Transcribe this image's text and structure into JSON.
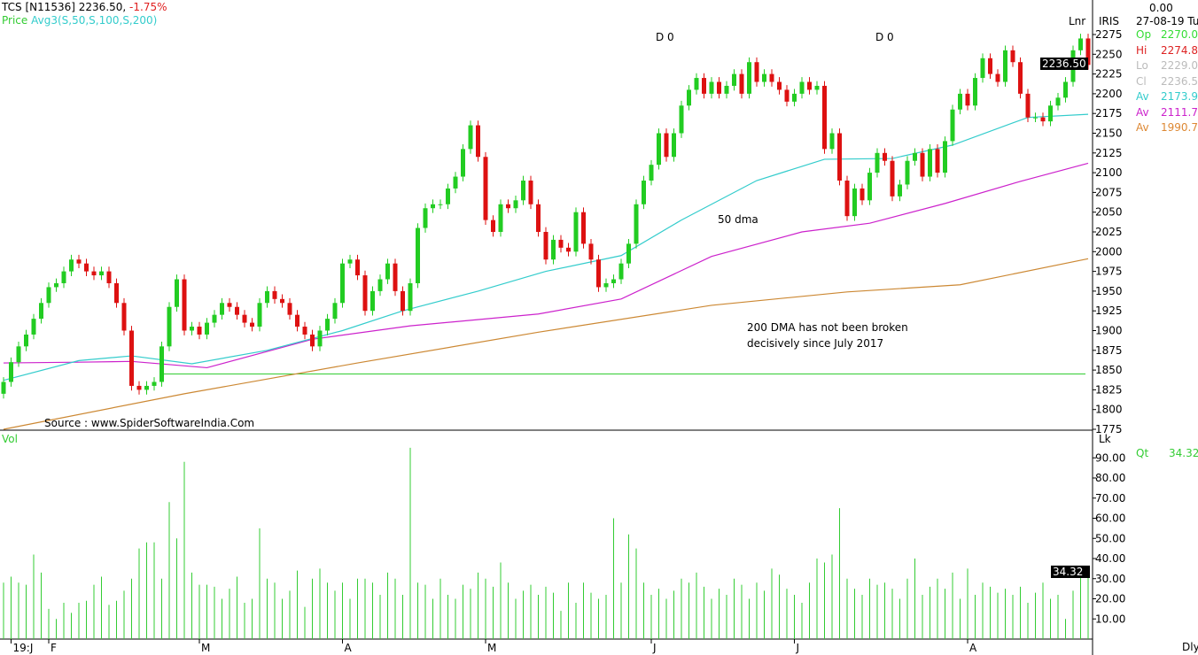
{
  "header": {
    "symbol": "TCS [N11536]",
    "price": "2236.50,",
    "change": "-1.75%",
    "price_label": "Price",
    "avg_label": "Avg3(S,50,S,100,S,200)"
  },
  "right_panel": {
    "top_value": "0.00",
    "date": "27-08-19 Tu",
    "iris": "IRIS",
    "lnr": "Lnr",
    "lk": "Lk",
    "dly": "Dly",
    "rows": [
      {
        "label": "Op",
        "value": "2270.00",
        "color": "#33dd33"
      },
      {
        "label": "Hi",
        "value": "2274.85",
        "color": "#dd2222"
      },
      {
        "label": "Lo",
        "value": "2229.00",
        "color": "#bbbbbb"
      },
      {
        "label": "Cl",
        "value": "2236.50",
        "color": "#bbbbbb"
      },
      {
        "label": "Av",
        "value": "2173.97",
        "color": "#33cccc"
      },
      {
        "label": "Av",
        "value": "2111.79",
        "color": "#cc22cc"
      },
      {
        "label": "Av",
        "value": "1990.70",
        "color": "#dd8833"
      }
    ],
    "vol_label": "Qt",
    "vol_value": "34.32",
    "last_price_tag": "2236.50",
    "last_vol_tag": "34.32"
  },
  "annotations": {
    "dma50": "50 dma",
    "dma200_line1": "200 DMA has not been broken",
    "dma200_line2": "decisively since July 2017",
    "source": "Source : www.SpiderSoftwareIndia.Com",
    "d0_a": "D 0",
    "d0_b": "D 0",
    "vol": "Vol"
  },
  "colors": {
    "up": "#22cc22",
    "down": "#dd1111",
    "ma50": "#33cccc",
    "ma100": "#cc22cc",
    "ma200": "#cc8833",
    "support": "#33cc33",
    "volume": "#33cc33"
  },
  "chart_data": {
    "type": "candlestick",
    "title": "TCS [N11536] daily",
    "ylim": [
      1775,
      2285
    ],
    "yticks": [
      1775,
      1800,
      1825,
      1850,
      1875,
      1900,
      1925,
      1950,
      1975,
      2000,
      2025,
      2050,
      2075,
      2100,
      2125,
      2150,
      2175,
      2200,
      2225,
      2250,
      2275
    ],
    "xticks": [
      {
        "i": 1,
        "label": "19:J"
      },
      {
        "i": 6,
        "label": "F"
      },
      {
        "i": 26,
        "label": "M"
      },
      {
        "i": 45,
        "label": "A"
      },
      {
        "i": 64,
        "label": "M"
      },
      {
        "i": 86,
        "label": "J"
      },
      {
        "i": 105,
        "label": "J"
      },
      {
        "i": 128,
        "label": "A"
      }
    ],
    "close": [
      1835,
      1860,
      1880,
      1895,
      1915,
      1935,
      1955,
      1960,
      1975,
      1990,
      1985,
      1975,
      1970,
      1975,
      1960,
      1935,
      1900,
      1830,
      1825,
      1830,
      1835,
      1880,
      1930,
      1965,
      1900,
      1905,
      1895,
      1910,
      1920,
      1935,
      1930,
      1920,
      1910,
      1905,
      1935,
      1950,
      1940,
      1935,
      1920,
      1905,
      1895,
      1880,
      1900,
      1915,
      1935,
      1985,
      1990,
      1970,
      1925,
      1950,
      1965,
      1985,
      1950,
      1925,
      1960,
      2030,
      2055,
      2060,
      2060,
      2080,
      2095,
      2130,
      2160,
      2120,
      2040,
      2025,
      2060,
      2055,
      2065,
      2090,
      2060,
      2025,
      1990,
      2015,
      2005,
      2000,
      2050,
      2010,
      1990,
      1955,
      1960,
      1965,
      1985,
      2010,
      2060,
      2090,
      2110,
      2150,
      2120,
      2150,
      2185,
      2205,
      2220,
      2200,
      2215,
      2200,
      2210,
      2225,
      2200,
      2240,
      2215,
      2225,
      2215,
      2205,
      2190,
      2200,
      2215,
      2205,
      2210,
      2130,
      2150,
      2090,
      2045,
      2080,
      2065,
      2100,
      2125,
      2115,
      2070,
      2085,
      2115,
      2125,
      2095,
      2130,
      2100,
      2140,
      2180,
      2200,
      2185,
      2220,
      2245,
      2225,
      2215,
      2255,
      2240,
      2200,
      2170,
      2170,
      2165,
      2185,
      2195,
      2215,
      2255,
      2270,
      2236.5
    ],
    "volume": {
      "ylim": [
        0,
        100
      ],
      "yticks": [
        10,
        20,
        30,
        40,
        50,
        60,
        70,
        80,
        90
      ],
      "values": [
        28,
        31,
        28,
        27,
        42,
        33,
        15,
        10,
        18,
        13,
        18,
        19,
        27,
        31,
        17,
        19,
        24,
        30,
        45,
        48,
        48,
        30,
        68,
        50,
        88,
        33,
        27,
        27,
        26,
        20,
        25,
        31,
        18,
        20,
        55,
        30,
        28,
        20,
        24,
        34,
        16,
        30,
        35,
        28,
        24,
        28,
        20,
        30,
        30,
        28,
        22,
        33,
        30,
        22,
        95,
        28,
        27,
        20,
        30,
        22,
        20,
        27,
        25,
        33,
        30,
        26,
        38,
        28,
        20,
        24,
        27,
        22,
        26,
        23,
        14,
        28,
        18,
        28,
        23,
        20,
        22,
        60,
        28,
        52,
        45,
        28,
        22,
        25,
        20,
        24,
        30,
        28,
        33,
        26,
        20,
        25,
        22,
        30,
        27,
        20,
        28,
        24,
        35,
        32,
        25,
        22,
        18,
        28,
        40,
        38,
        42,
        65,
        30,
        25,
        22,
        30,
        27,
        28,
        25,
        20,
        30,
        40,
        22,
        26,
        30,
        25,
        33,
        20,
        35,
        22,
        28,
        26,
        23,
        25,
        22,
        26,
        18,
        23,
        28,
        20,
        22,
        10,
        24,
        32,
        34.32
      ]
    },
    "ma50": [
      [
        0,
        1837
      ],
      [
        10,
        1862
      ],
      [
        17,
        1868
      ],
      [
        25,
        1858
      ],
      [
        35,
        1875
      ],
      [
        45,
        1900
      ],
      [
        53,
        1925
      ],
      [
        63,
        1950
      ],
      [
        72,
        1975
      ],
      [
        82,
        1995
      ],
      [
        90,
        2040
      ],
      [
        100,
        2090
      ],
      [
        109,
        2117
      ],
      [
        118,
        2118
      ],
      [
        126,
        2135
      ],
      [
        136,
        2170
      ],
      [
        144,
        2174
      ]
    ],
    "ma100": [
      [
        0,
        1859
      ],
      [
        10,
        1860
      ],
      [
        17,
        1861
      ],
      [
        27,
        1853
      ],
      [
        41,
        1889
      ],
      [
        54,
        1906
      ],
      [
        71,
        1921
      ],
      [
        82,
        1940
      ],
      [
        94,
        1994
      ],
      [
        106,
        2025
      ],
      [
        115,
        2036
      ],
      [
        125,
        2061
      ],
      [
        135,
        2089
      ],
      [
        144,
        2112
      ]
    ],
    "ma200": [
      [
        0,
        1775
      ],
      [
        24,
        1820
      ],
      [
        47,
        1859
      ],
      [
        71,
        1898
      ],
      [
        94,
        1932
      ],
      [
        112,
        1949
      ],
      [
        127,
        1958
      ],
      [
        144,
        1991
      ]
    ],
    "support_level": 1845
  }
}
